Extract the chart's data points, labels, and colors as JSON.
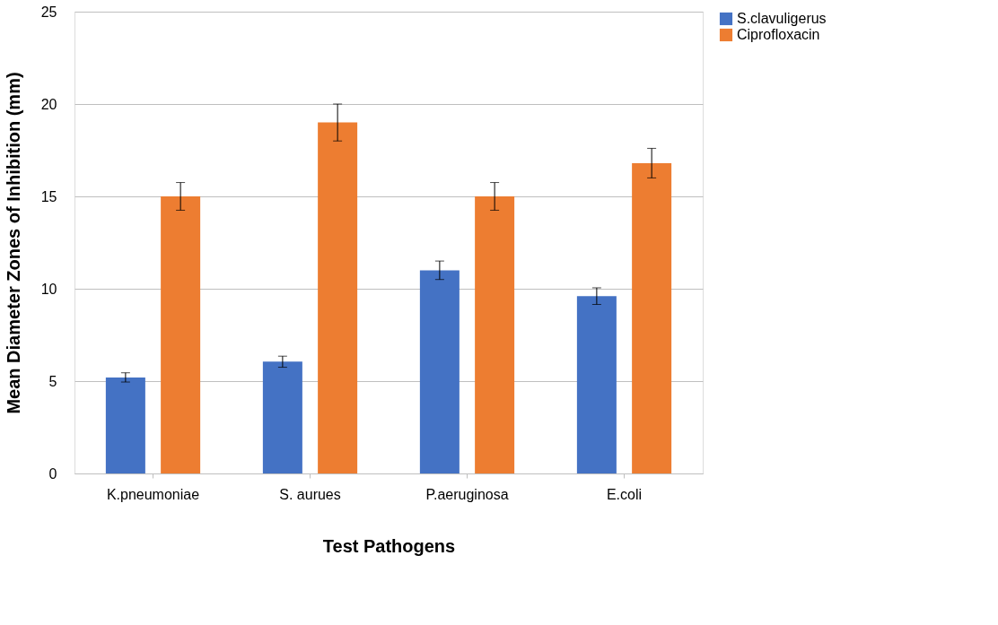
{
  "chart_data": {
    "type": "bar",
    "xlabel": "Test Pathogens",
    "ylabel": "Mean Diameter Zones of Inhibition (mm)",
    "categories": [
      "K.pneumoniae",
      "S. aurues",
      "P.aeruginosa",
      "E.coli"
    ],
    "series": [
      {
        "name": "S.clavuligerus",
        "color": "#4472c4",
        "values": [
          5.2,
          6.05,
          11.0,
          9.6
        ],
        "errors": [
          0.25,
          0.3,
          0.5,
          0.45
        ]
      },
      {
        "name": "Ciprofloxacin",
        "color": "#ed7d31",
        "values": [
          15.0,
          19.0,
          15.0,
          16.8
        ],
        "errors": [
          0.75,
          1.0,
          0.75,
          0.8
        ]
      }
    ],
    "ylim": [
      0,
      25
    ],
    "yticks": [
      0,
      5,
      10,
      15,
      20,
      25
    ],
    "grid": "y",
    "legend": "right"
  }
}
